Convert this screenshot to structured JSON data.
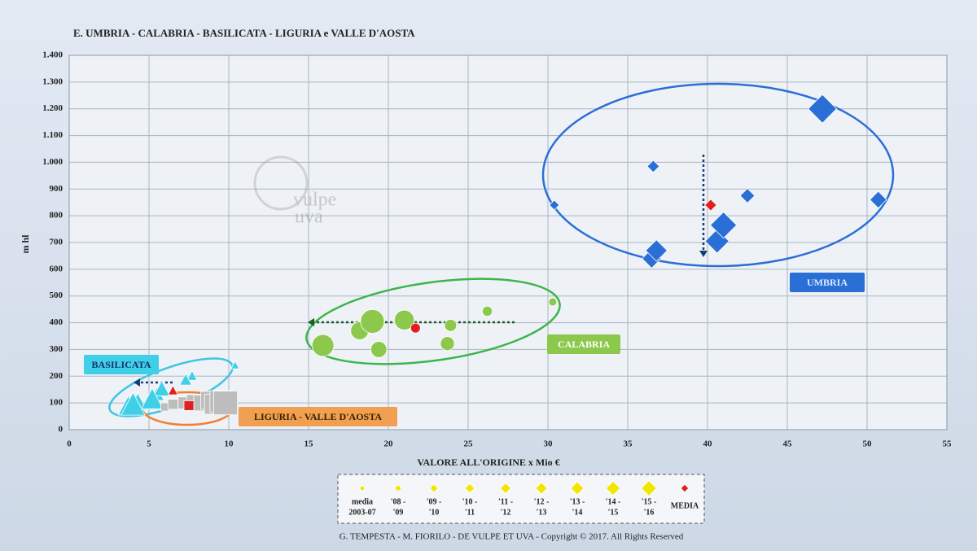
{
  "chart_data": {
    "type": "scatter",
    "title": "E.  UMBRIA - CALABRIA - BASILICATA - LIGURIA e VALLE D'AOSTA",
    "xlabel": "VALORE ALL'ORIGINE  x Mio €",
    "ylabel": "m hl",
    "xlim": [
      0,
      55
    ],
    "ylim": [
      0,
      1400
    ],
    "xticks": [
      0,
      5,
      10,
      15,
      20,
      25,
      30,
      35,
      40,
      45,
      50,
      55
    ],
    "yticks": [
      0,
      100,
      200,
      300,
      400,
      500,
      600,
      700,
      800,
      900,
      {
        "value": 1000,
        "label": "1.000"
      },
      {
        "value": 1100,
        "label": "1.100"
      },
      {
        "value": 1200,
        "label": "1.200"
      },
      {
        "value": 1300,
        "label": "1.300"
      },
      {
        "value": 1400,
        "label": "1.400"
      }
    ],
    "grid": true,
    "series": [
      {
        "name": "UMBRIA",
        "color": "#2a6fd6",
        "marker": "diamond",
        "x": [
          30.4,
          36.6,
          42.5,
          50.7,
          36.5,
          36.8,
          40.6,
          41.0,
          47.2
        ],
        "y": [
          840,
          985,
          875,
          860,
          640,
          670,
          705,
          765,
          1200
        ],
        "media": {
          "x": 40.2,
          "y": 840
        }
      },
      {
        "name": "CALABRIA",
        "color": "#8cc84b",
        "marker": "circle",
        "x": [
          30.3,
          26.2,
          23.9,
          23.7,
          19.4,
          18.2,
          21.0,
          15.9,
          19.0
        ],
        "y": [
          478,
          443,
          390,
          322,
          300,
          370,
          410,
          315,
          405
        ],
        "media": {
          "x": 21.7,
          "y": 380
        }
      },
      {
        "name": "BASILICATA",
        "color": "#3fd0e8",
        "marker": "triangle",
        "x": [
          10.4,
          7.7,
          7.3,
          5.5,
          5.8,
          4.3,
          3.7,
          5.2,
          4.0
        ],
        "y": [
          240,
          200,
          185,
          130,
          150,
          100,
          85,
          110,
          90
        ],
        "media": {
          "x": 6.5,
          "y": 145
        }
      },
      {
        "name": "LIGURIA - VALLE D'AOSTA",
        "color": "#bdbdbd",
        "marker": "square",
        "x": [
          6.0,
          6.5,
          7.2,
          7.8,
          8.3,
          8.8,
          9.1,
          9.5,
          9.8
        ],
        "y": [
          85,
          95,
          100,
          105,
          100,
          110,
          95,
          105,
          100
        ],
        "media": {
          "x": 7.5,
          "y": 90
        }
      }
    ],
    "legend": [
      [
        "media",
        "2003-07"
      ],
      [
        "'08 -",
        "'09"
      ],
      [
        "'09 -",
        "'10"
      ],
      [
        "'10 -",
        "'11"
      ],
      [
        "'11 -",
        "'12"
      ],
      [
        "'12 -",
        "'13"
      ],
      [
        "'13 -",
        "'14"
      ],
      [
        "'14 -",
        "'15"
      ],
      [
        "'15 -",
        "'16"
      ]
    ],
    "legend_color": "#f2e600",
    "media_label": "MEDIA",
    "media_color": "#e02020",
    "watermark": [
      "vulpe",
      "uva"
    ],
    "footer": "G. TEMPESTA - M. FIORILO    -    DE VULPE ET UVA    -    Copyright © 2017. All Rights Reserved"
  }
}
